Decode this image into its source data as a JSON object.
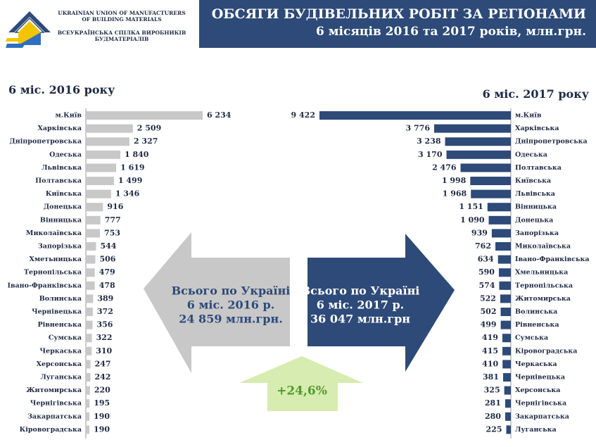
{
  "header": {
    "org_en": "UKRAINIAN UNION OF MANUFACTURERS OF BUILDING MATERIALS",
    "org_ua": "ВСЕУКРАЇНСЬКА СПІЛКА ВИРОБНИКІВ БУДМАТЕРІАЛІВ",
    "title": "ОБСЯГИ БУДІВЕЛЬНИХ РОБІТ ЗА РЕГІОНАМИ",
    "subtitle": "6 місяців 2016 та 2017 років, млн.грн."
  },
  "colors": {
    "banner": "#2d4a78",
    "bar_2016": "#c8c8c8",
    "bar_2017": "#2d4a78",
    "arrow_2016": "#c8c8c8",
    "arrow_2017": "#2d4a78",
    "arrow_growth": "#d7ecb0",
    "growth_text": "#4f9a2c"
  },
  "chart_data": [
    {
      "type": "bar",
      "title": "6 міс. 2016 року",
      "orientation": "horizontal",
      "categories": [
        "м.Київ",
        "Харківська",
        "Дніпропетровська",
        "Одеська",
        "Львівська",
        "Полтавська",
        "Київська",
        "Донецька",
        "Вінницька",
        "Миколаївська",
        "Запорізька",
        "Хметьницька",
        "Тернопільська",
        "Івано-Франківська",
        "Волинська",
        "Чернівецька",
        "Рівненська",
        "Сумська",
        "Черкаська",
        "Херсонська",
        "Луганська",
        "Житомирська",
        "Чернігівська",
        "Закарпатська",
        "Кіровоградська"
      ],
      "values": [
        6234,
        2509,
        2327,
        1840,
        1619,
        1499,
        1346,
        916,
        777,
        753,
        544,
        506,
        479,
        478,
        389,
        372,
        356,
        322,
        310,
        247,
        242,
        220,
        195,
        190,
        190
      ],
      "labels": [
        "6 234",
        "2 509",
        "2 327",
        "1 840",
        "1 619",
        "1 499",
        "1 346",
        "916",
        "777",
        "753",
        "544",
        "506",
        "479",
        "478",
        "389",
        "372",
        "356",
        "322",
        "310",
        "247",
        "242",
        "220",
        "195",
        "190",
        "190"
      ],
      "xlim": [
        0,
        6234
      ]
    },
    {
      "type": "bar",
      "title": "6 міс. 2017 року",
      "orientation": "horizontal",
      "categories": [
        "м.Київ",
        "Харківська",
        "Дніпропетровська",
        "Одеська",
        "Полтавська",
        "Київська",
        "Львівська",
        "Вінницька",
        "Донецька",
        "Запорізька",
        "Миколаївська",
        "Івано-Франківська",
        "Хмельницька",
        "Тернопільська",
        "Житомирська",
        "Волинська",
        "Рівненська",
        "Сумська",
        "Кіровоградська",
        "Черкаська",
        "Чернівецька",
        "Херсонська",
        "Чернігівська",
        "Закарпатська",
        "Луганська"
      ],
      "values": [
        9422,
        3776,
        3238,
        3170,
        2476,
        1998,
        1968,
        1151,
        1090,
        939,
        762,
        634,
        590,
        574,
        522,
        502,
        499,
        419,
        415,
        410,
        381,
        325,
        281,
        280,
        225
      ],
      "labels": [
        "9 422",
        "3 776",
        "3 238",
        "3 170",
        "2 476",
        "1 998",
        "1 968",
        "1 151",
        "1 090",
        "939",
        "762",
        "634",
        "590",
        "574",
        "522",
        "502",
        "499",
        "419",
        "415",
        "410",
        "381",
        "325",
        "281",
        "280",
        "225"
      ],
      "xlim": [
        0,
        9422
      ]
    }
  ],
  "summary": {
    "left_lines": [
      "Всього по Україні",
      "6 міс. 2016 р.",
      "24 859 млн.грн."
    ],
    "right_lines": [
      "Всього по Україні",
      "6 міс. 2017 р.",
      "36 047 млн.грн"
    ],
    "growth": "+24,6%"
  }
}
